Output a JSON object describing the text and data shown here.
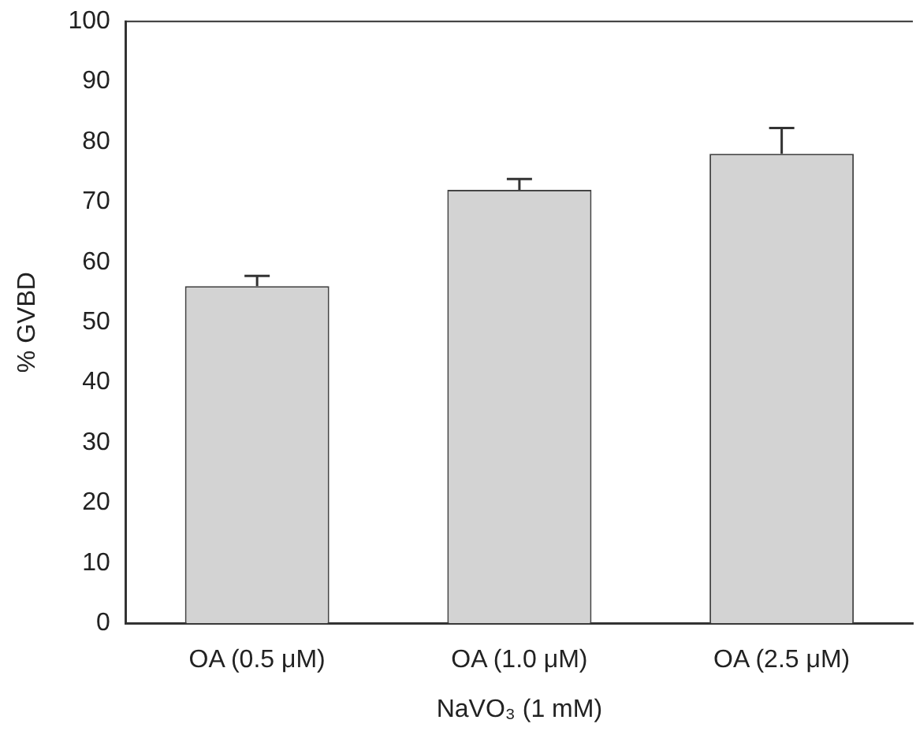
{
  "chart_data": {
    "type": "bar",
    "ylabel": "% GVBD",
    "xlabel": "NaVO₃ (1 mM)",
    "categories": [
      "OA (0.5 μM)",
      "OA (1.0 μM)",
      "OA (2.5 μM)"
    ],
    "values": [
      56,
      72,
      78
    ],
    "errors": [
      1.7,
      1.8,
      4.3
    ],
    "color": "#d3d3d3",
    "ylim": [
      0,
      100
    ],
    "yticks": [
      0,
      10,
      20,
      30,
      40,
      50,
      60,
      70,
      80,
      90,
      100
    ],
    "grid": false,
    "legend": false
  }
}
